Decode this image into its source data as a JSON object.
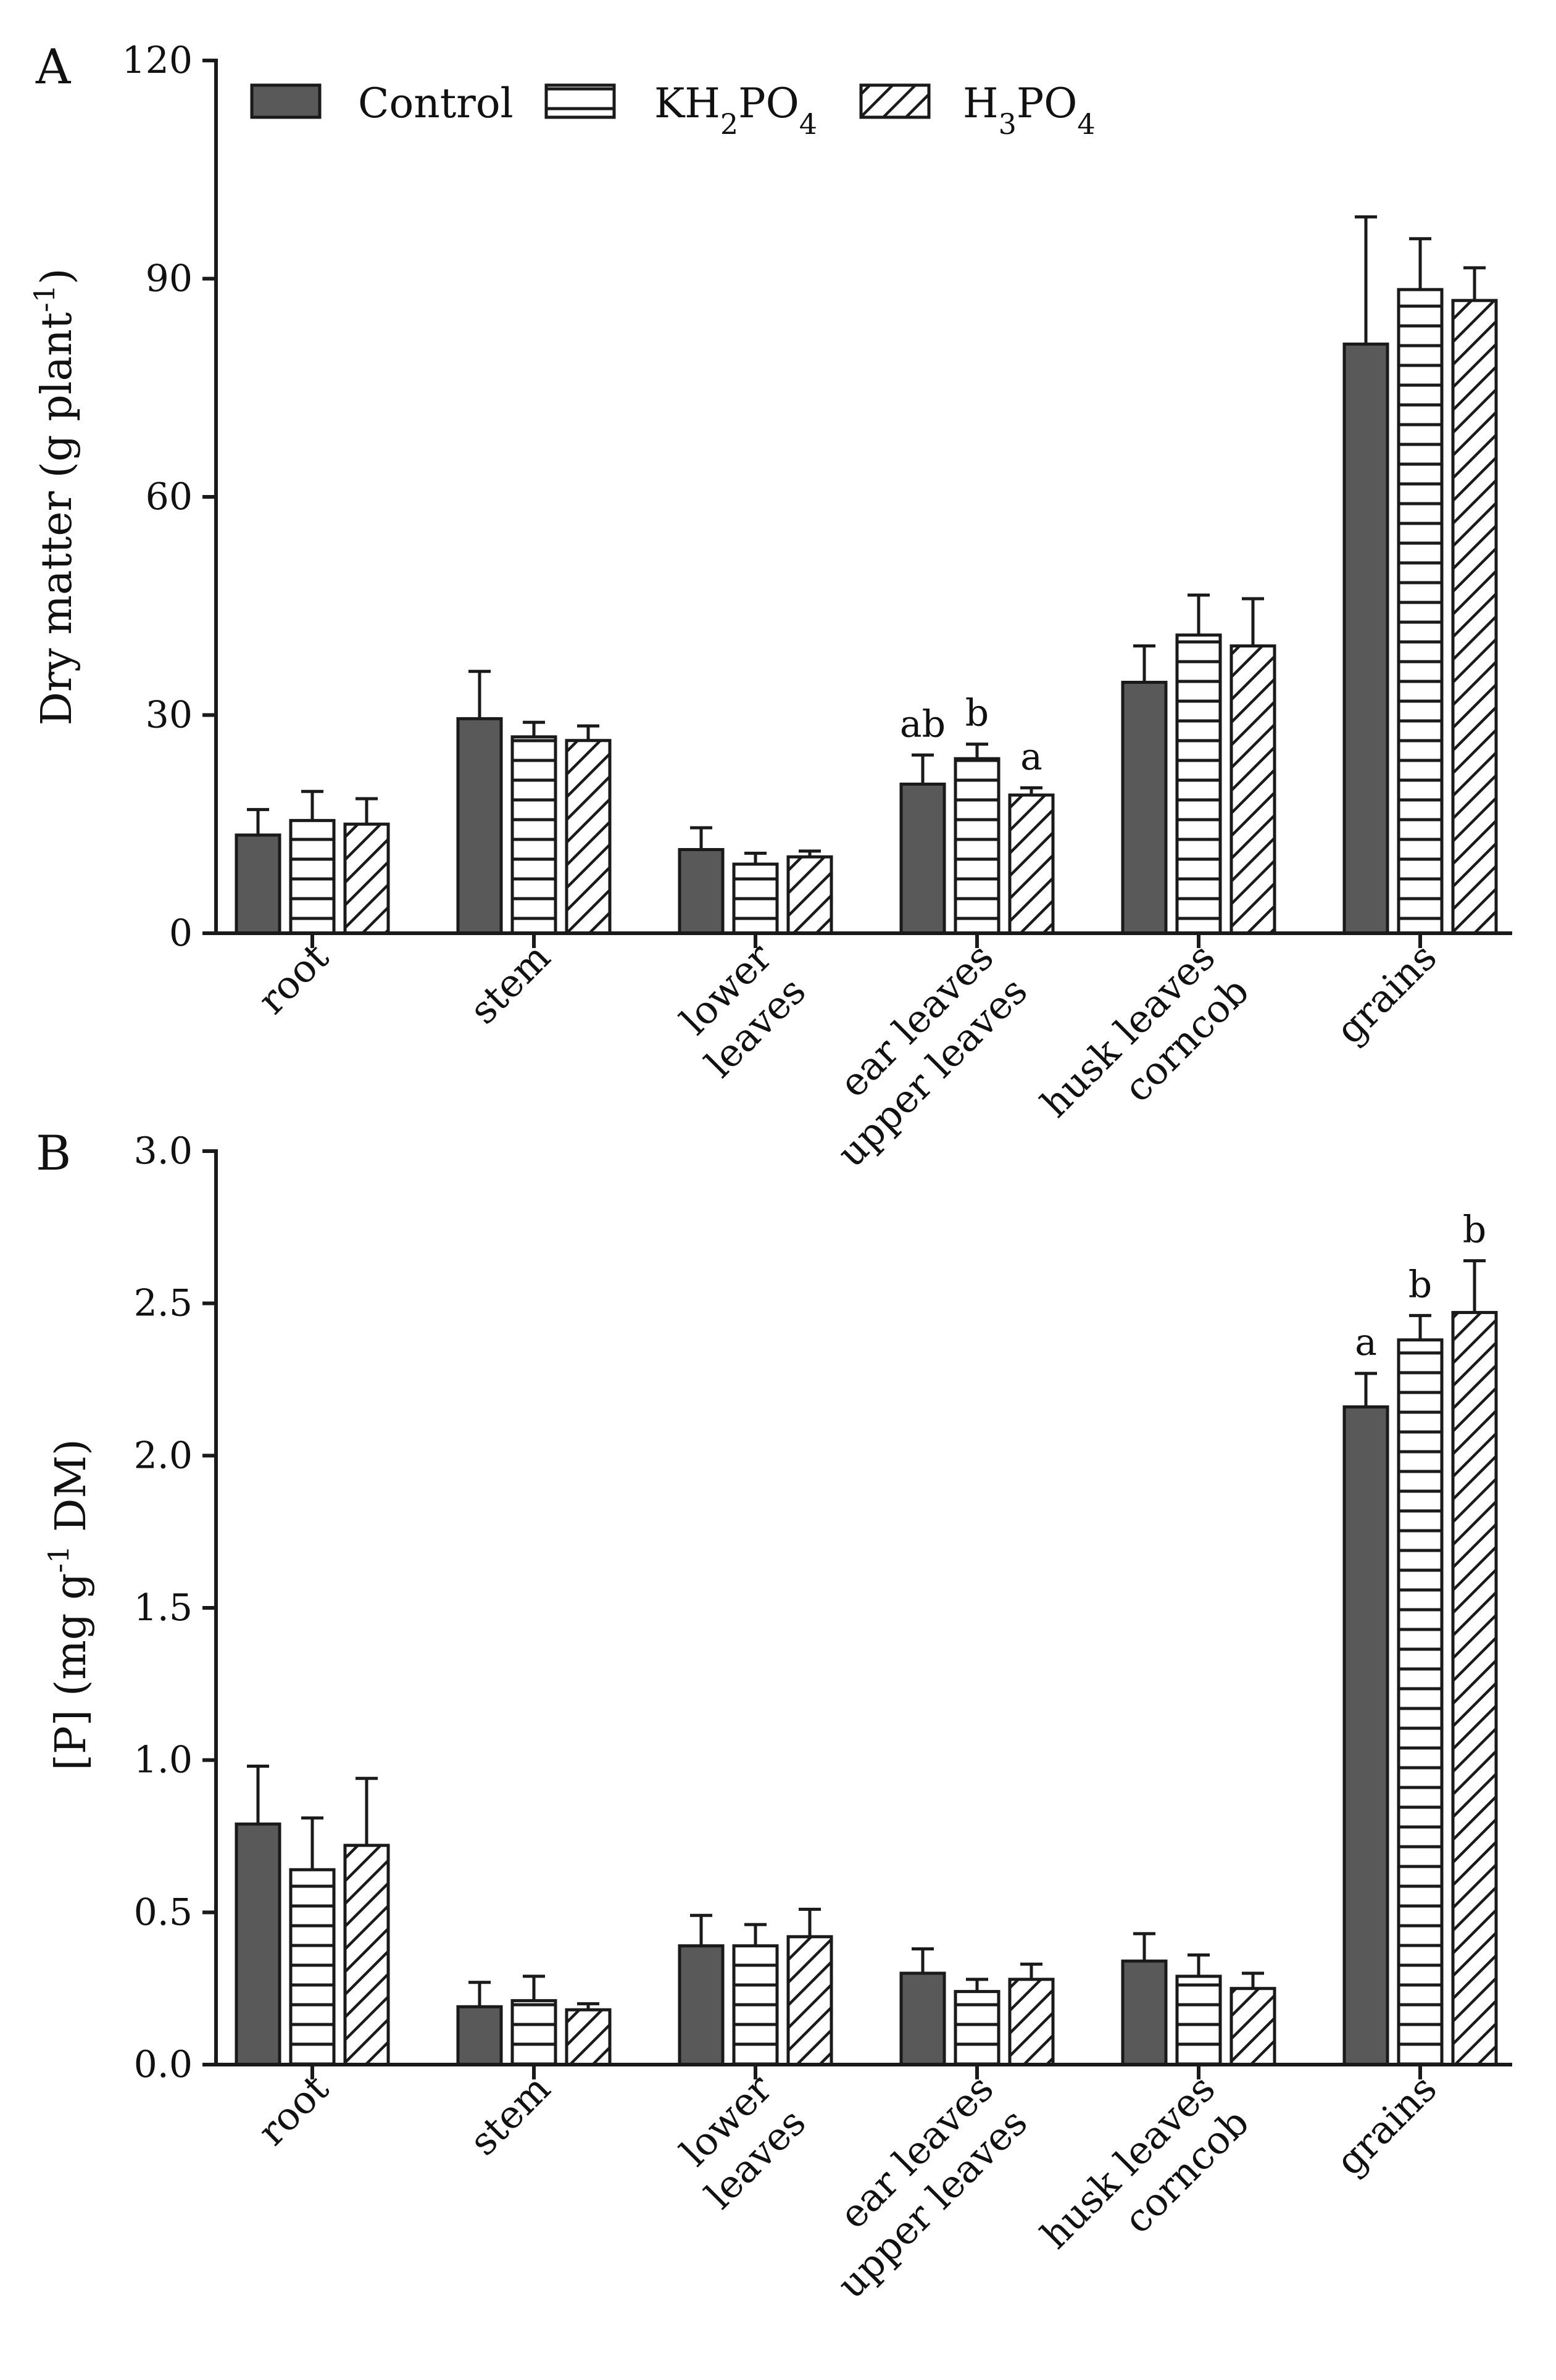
{
  "legend": {
    "items": [
      {
        "name": "control",
        "label": "Control",
        "pattern": "solid"
      },
      {
        "name": "kh2po4",
        "label": "KH2PO4",
        "pattern": "hlines"
      },
      {
        "name": "h3po4",
        "label": "H3PO4",
        "pattern": "diag"
      }
    ]
  },
  "colors": {
    "solid": "#595959",
    "line": "#1a1a1a",
    "background": "#ffffff"
  },
  "chart_data": [
    {
      "panel": "A",
      "type": "bar",
      "ylabel": "Dry matter (g plant-1)",
      "ylim": [
        0,
        120
      ],
      "yticks": [
        "0",
        "30",
        "60",
        "90",
        "120"
      ],
      "ytick_values": [
        0,
        30,
        60,
        90,
        120
      ],
      "categories": [
        [
          "root"
        ],
        [
          "stem"
        ],
        [
          "lower",
          "leaves"
        ],
        [
          "ear leaves",
          "upper leaves"
        ],
        [
          "husk leaves",
          "corncob"
        ],
        [
          "grains"
        ]
      ],
      "series": [
        {
          "name": "Control",
          "values": [
            13.5,
            29.5,
            11.5,
            20.5,
            34.5,
            81.0
          ],
          "errors": [
            3.5,
            6.5,
            3.0,
            4.0,
            5.0,
            17.5
          ]
        },
        {
          "name": "KH2PO4",
          "values": [
            15.5,
            27.0,
            9.5,
            24.0,
            41.0,
            88.5
          ],
          "errors": [
            4.0,
            2.0,
            1.5,
            2.0,
            5.5,
            7.0
          ]
        },
        {
          "name": "H3PO4",
          "values": [
            15.0,
            26.5,
            10.5,
            19.0,
            39.5,
            87.0
          ],
          "errors": [
            3.5,
            2.0,
            0.8,
            1.0,
            6.5,
            4.5
          ]
        }
      ],
      "annotations": [
        {
          "category": 3,
          "series": 0,
          "text": "ab"
        },
        {
          "category": 3,
          "series": 1,
          "text": "b"
        },
        {
          "category": 3,
          "series": 2,
          "text": "a"
        }
      ]
    },
    {
      "panel": "B",
      "type": "bar",
      "ylabel": "[P] (mg g-1 DM)",
      "ylim": [
        0,
        3.0
      ],
      "yticks": [
        "0.0",
        "0.5",
        "1.0",
        "1.5",
        "2.0",
        "2.5",
        "3.0"
      ],
      "ytick_values": [
        0,
        0.5,
        1.0,
        1.5,
        2.0,
        2.5,
        3.0
      ],
      "categories": [
        [
          "root"
        ],
        [
          "stem"
        ],
        [
          "lower",
          "leaves"
        ],
        [
          "ear leaves",
          "upper leaves"
        ],
        [
          "husk leaves",
          "corncob"
        ],
        [
          "grains"
        ]
      ],
      "series": [
        {
          "name": "Control",
          "values": [
            0.79,
            0.19,
            0.39,
            0.3,
            0.34,
            2.16
          ],
          "errors": [
            0.19,
            0.08,
            0.1,
            0.08,
            0.09,
            0.11
          ]
        },
        {
          "name": "KH2PO4",
          "values": [
            0.64,
            0.21,
            0.39,
            0.24,
            0.29,
            2.38
          ],
          "errors": [
            0.17,
            0.08,
            0.07,
            0.04,
            0.07,
            0.08
          ]
        },
        {
          "name": "H3PO4",
          "values": [
            0.72,
            0.18,
            0.42,
            0.28,
            0.25,
            2.47
          ],
          "errors": [
            0.22,
            0.02,
            0.09,
            0.05,
            0.05,
            0.17
          ]
        }
      ],
      "annotations": [
        {
          "category": 5,
          "series": 0,
          "text": "a"
        },
        {
          "category": 5,
          "series": 1,
          "text": "b"
        },
        {
          "category": 5,
          "series": 2,
          "text": "b"
        }
      ]
    }
  ]
}
